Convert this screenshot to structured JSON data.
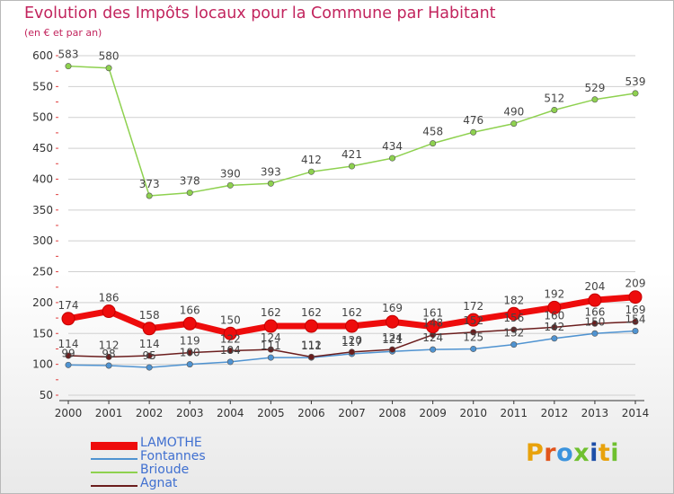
{
  "title": "Evolution des Impôts locaux pour la Commune par Habitant",
  "subtitle": "(en € et par an)",
  "logo_text": "Proxiti",
  "colors": {
    "title": "#c2245d",
    "axis": "#333333",
    "grid": "#cfcfcf",
    "tick_mark": "#e04040",
    "legend_text": "#3f6fd0",
    "logo_letters": [
      "#e8a20c",
      "#e1541b",
      "#3b93dd",
      "#6fc02f",
      "#1d4ea8",
      "#e8a20c",
      "#6fc02f"
    ]
  },
  "chart_data": {
    "type": "line",
    "x": [
      "2000",
      "2001",
      "2002",
      "2003",
      "2004",
      "2005",
      "2006",
      "2007",
      "2008",
      "2009",
      "2010",
      "2011",
      "2012",
      "2013",
      "2014"
    ],
    "ylim": [
      50,
      600
    ],
    "yticks": [
      50,
      100,
      150,
      200,
      250,
      300,
      350,
      400,
      450,
      500,
      550,
      600
    ],
    "grid": "horizontal",
    "legend_position": "bottom-left",
    "series": [
      {
        "name": "LAMOTHE",
        "color": "#ee0c0c",
        "values": [
          174,
          186,
          158,
          166,
          150,
          162,
          162,
          162,
          169,
          161,
          172,
          182,
          192,
          204,
          209
        ],
        "labels": [
          "174",
          "186",
          "158",
          "166",
          "150",
          "162",
          "162",
          "162",
          "169",
          "161",
          "172",
          "182",
          "192",
          "204",
          "209"
        ]
      },
      {
        "name": "Fontannes",
        "color": "#4f93d1",
        "values": [
          99,
          98,
          95,
          100,
          104,
          111,
          111,
          117,
          121,
          124,
          125,
          132,
          142,
          150,
          154
        ],
        "labels": [
          "99",
          "98",
          "95",
          "100",
          "104",
          "111",
          "111",
          "117",
          "121",
          "124",
          "125",
          "132",
          "142",
          "150",
          "154"
        ]
      },
      {
        "name": "Brioude",
        "color": "#8ed14f",
        "values": [
          583,
          580,
          373,
          378,
          390,
          393,
          412,
          421,
          434,
          458,
          476,
          490,
          512,
          529,
          539
        ],
        "labels": [
          "583",
          "580",
          "373",
          "378",
          "390",
          "393",
          "412",
          "421",
          "434",
          "458",
          "476",
          "490",
          "512",
          "529",
          "539"
        ]
      },
      {
        "name": "Agnat",
        "color": "#6b1d1d",
        "values": [
          114,
          112,
          114,
          119,
          122,
          124,
          112,
          120,
          124,
          148,
          152,
          156,
          160,
          166,
          169
        ],
        "labels": [
          "114",
          "112",
          "114",
          "119",
          "122",
          "124",
          "112",
          "120",
          "124",
          "148",
          "152",
          "156",
          "160",
          "166",
          "169"
        ]
      }
    ]
  }
}
